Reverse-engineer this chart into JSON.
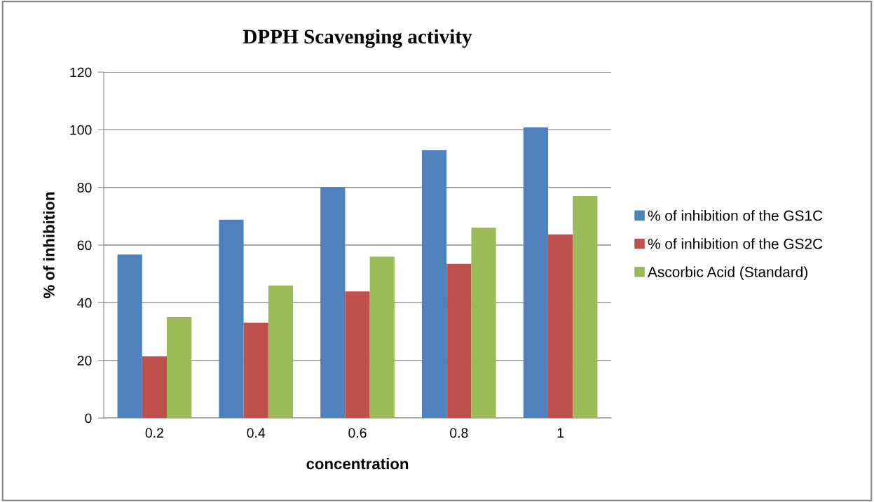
{
  "chart_data": {
    "type": "bar",
    "title": "DPPH Scavenging activity",
    "xlabel": "concentration",
    "ylabel": "% of inhibition",
    "categories": [
      "0.2",
      "0.4",
      "0.6",
      "0.8",
      "1"
    ],
    "series": [
      {
        "name": "% of inhibition of the GS1C",
        "color": "#4f81bd",
        "values": [
          56.7,
          68.8,
          80,
          93,
          100.8
        ]
      },
      {
        "name": "% of inhibition of the GS2C",
        "color": "#c0504d",
        "values": [
          21.4,
          33.1,
          43.9,
          53.5,
          63.7
        ]
      },
      {
        "name": "Ascorbic Acid (Standard)",
        "color": "#9bbb59",
        "values": [
          35,
          46,
          56,
          66,
          77
        ]
      }
    ],
    "ylim": [
      0,
      120
    ],
    "yticks": [
      0,
      20,
      40,
      60,
      80,
      100,
      120
    ],
    "grid": "y",
    "legend": "right"
  }
}
